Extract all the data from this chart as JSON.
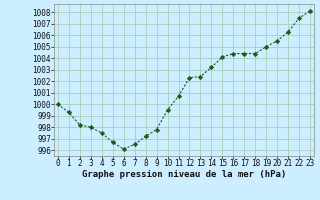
{
  "x": [
    0,
    1,
    2,
    3,
    4,
    5,
    6,
    7,
    8,
    9,
    10,
    11,
    12,
    13,
    14,
    15,
    16,
    17,
    18,
    19,
    20,
    21,
    22,
    23
  ],
  "y": [
    1000.0,
    999.3,
    998.2,
    998.0,
    997.5,
    996.7,
    996.1,
    996.5,
    997.2,
    997.8,
    999.5,
    1000.7,
    1002.3,
    1002.4,
    1003.2,
    1004.1,
    1004.4,
    1004.4,
    1004.4,
    1005.0,
    1005.5,
    1006.3,
    1007.5,
    1008.1
  ],
  "line_color": "#1a5c1a",
  "marker": "D",
  "marker_size": 2.2,
  "bg_color": "#cceeff",
  "grid_color": "#aaccbb",
  "xlabel": "Graphe pression niveau de la mer (hPa)",
  "xlabel_fontsize": 6.5,
  "tick_fontsize": 5.5,
  "ylim": [
    995.5,
    1008.7
  ],
  "xlim": [
    -0.3,
    23.3
  ],
  "yticks": [
    996,
    997,
    998,
    999,
    1000,
    1001,
    1002,
    1003,
    1004,
    1005,
    1006,
    1007,
    1008
  ],
  "xticks": [
    0,
    1,
    2,
    3,
    4,
    5,
    6,
    7,
    8,
    9,
    10,
    11,
    12,
    13,
    14,
    15,
    16,
    17,
    18,
    19,
    20,
    21,
    22,
    23
  ]
}
